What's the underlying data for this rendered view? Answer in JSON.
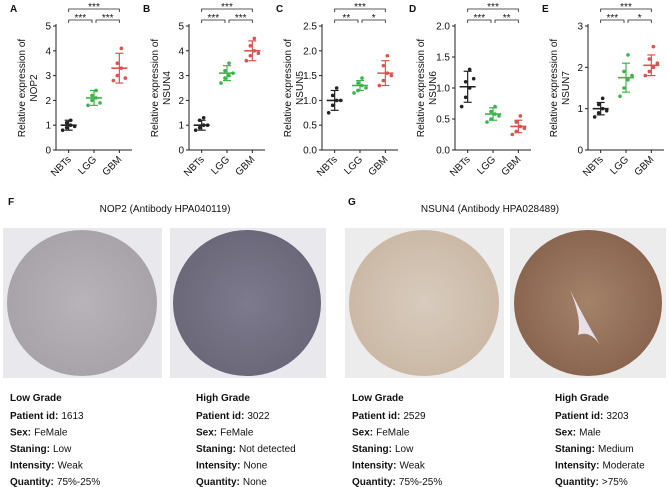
{
  "chart_data": [
    {
      "type": "strip",
      "panel": "A",
      "ylabel": [
        "Relative expression of",
        "NOP2"
      ],
      "categories": [
        "NBTs",
        "LGG",
        "GBM"
      ],
      "colors": [
        "#222222",
        "#3cb44b",
        "#d9534f"
      ],
      "points": [
        [
          0.8,
          0.9,
          1.0,
          1.1,
          1.2,
          0.95
        ],
        [
          1.8,
          2.0,
          2.1,
          2.2,
          2.4,
          1.9
        ],
        [
          2.8,
          3.0,
          3.3,
          3.5,
          4.1,
          2.9
        ]
      ],
      "means": [
        1.0,
        2.1,
        3.3
      ],
      "sds": [
        0.2,
        0.3,
        0.6
      ],
      "sig_labels": [
        "***",
        "***",
        "***"
      ],
      "ylim": [
        0,
        5
      ],
      "yticks": [
        0,
        1,
        2,
        3,
        4,
        5
      ]
    },
    {
      "type": "strip",
      "panel": "B",
      "ylabel": [
        "Relative expression of",
        "NSUN4"
      ],
      "categories": [
        "NBTs",
        "LGG",
        "GBM"
      ],
      "colors": [
        "#222222",
        "#3cb44b",
        "#d9534f"
      ],
      "points": [
        [
          0.8,
          0.9,
          1.0,
          1.2,
          1.3,
          1.0
        ],
        [
          2.7,
          2.9,
          3.0,
          3.2,
          3.5,
          3.1
        ],
        [
          3.6,
          3.8,
          4.0,
          4.2,
          4.5,
          3.9
        ]
      ],
      "means": [
        1.0,
        3.1,
        4.0
      ],
      "sds": [
        0.2,
        0.3,
        0.4
      ],
      "sig_labels": [
        "***",
        "***",
        "***"
      ],
      "ylim": [
        0,
        5
      ],
      "yticks": [
        0,
        1,
        2,
        3,
        4,
        5
      ]
    },
    {
      "type": "strip",
      "panel": "C",
      "ylabel": [
        "Relative expression of",
        "NSUN5"
      ],
      "categories": [
        "NBTs",
        "LGG",
        "GBM"
      ],
      "colors": [
        "#222222",
        "#3cb44b",
        "#d9534f"
      ],
      "points": [
        [
          0.75,
          0.9,
          1.0,
          1.1,
          1.25,
          1.0
        ],
        [
          1.15,
          1.2,
          1.3,
          1.35,
          1.45,
          1.25
        ],
        [
          1.3,
          1.4,
          1.55,
          1.7,
          1.9,
          1.5
        ]
      ],
      "means": [
        1.0,
        1.3,
        1.55
      ],
      "sds": [
        0.2,
        0.1,
        0.25
      ],
      "sig_labels": [
        "**",
        "*",
        "***"
      ],
      "ylim": [
        0,
        2.5
      ],
      "yticks": [
        {
          "value": 0,
          "label": "0.0"
        },
        {
          "value": 0.5,
          "label": "0.5"
        },
        {
          "value": 1,
          "label": "1.0"
        },
        {
          "value": 1.5,
          "label": "1.5"
        },
        {
          "value": 2,
          "label": "2.0"
        },
        {
          "value": 2.5,
          "label": "2.5"
        }
      ]
    },
    {
      "type": "strip",
      "panel": "D",
      "ylabel": [
        "Relative expression of",
        "NSUN6"
      ],
      "categories": [
        "NBTs",
        "LGG",
        "GBM"
      ],
      "colors": [
        "#222222",
        "#3cb44b",
        "#d9534f"
      ],
      "points": [
        [
          0.7,
          0.85,
          1.0,
          1.1,
          1.3,
          1.15
        ],
        [
          0.45,
          0.5,
          0.58,
          0.62,
          0.7,
          0.55
        ],
        [
          0.25,
          0.3,
          0.38,
          0.45,
          0.55,
          0.35
        ]
      ],
      "means": [
        1.02,
        0.58,
        0.38
      ],
      "sds": [
        0.25,
        0.1,
        0.1
      ],
      "sig_labels": [
        "***",
        "**",
        "***"
      ],
      "ylim": [
        0,
        2
      ],
      "yticks": [
        {
          "value": 0,
          "label": "0.0"
        },
        {
          "value": 0.5,
          "label": "0.5"
        },
        {
          "value": 1,
          "label": "1.0"
        },
        {
          "value": 1.5,
          "label": "1.5"
        },
        {
          "value": 2,
          "label": "2.0"
        }
      ]
    },
    {
      "type": "strip",
      "panel": "E",
      "ylabel": [
        "Relative expression of",
        "NSUN7"
      ],
      "categories": [
        "NBTs",
        "LGG",
        "GBM"
      ],
      "colors": [
        "#222222",
        "#3cb44b",
        "#d9534f"
      ],
      "points": [
        [
          0.8,
          0.9,
          1.0,
          1.1,
          1.25,
          0.95
        ],
        [
          1.3,
          1.5,
          1.7,
          1.9,
          2.3,
          1.8
        ],
        [
          1.8,
          1.9,
          2.0,
          2.2,
          2.5,
          2.1
        ]
      ],
      "means": [
        1.0,
        1.75,
        2.05
      ],
      "sds": [
        0.15,
        0.35,
        0.25
      ],
      "sig_labels": [
        "***",
        "*",
        "***"
      ],
      "ylim": [
        0,
        3
      ],
      "yticks": [
        0,
        1,
        2,
        3
      ]
    }
  ],
  "figure_panels": [
    {
      "label": "F",
      "title": "NOP2 (Antibody HPA040119)",
      "samples": [
        {
          "grade": "Low Grade",
          "fields": [
            {
              "label": "Patient id:",
              "value": "1613"
            },
            {
              "label": "Sex:",
              "value": "FeMale"
            },
            {
              "label": "Staning:",
              "value": "Low"
            },
            {
              "label": "Intensity:",
              "value": "Weak"
            },
            {
              "label": "Quantity:",
              "value": "75%-25%"
            }
          ]
        },
        {
          "grade": "High Grade",
          "fields": [
            {
              "label": "Patient id:",
              "value": "3022"
            },
            {
              "label": "Sex:",
              "value": "FeMale"
            },
            {
              "label": "Staning:",
              "value": "Not detected"
            },
            {
              "label": "Intensity:",
              "value": "None"
            },
            {
              "label": "Quantity:",
              "value": "None"
            }
          ]
        }
      ]
    },
    {
      "label": "G",
      "title": "NSUN4 (Antibody HPA028489)",
      "samples": [
        {
          "grade": "Low Grade",
          "fields": [
            {
              "label": "Patient id:",
              "value": "2529"
            },
            {
              "label": "Sex:",
              "value": "FeMale"
            },
            {
              "label": "Staning:",
              "value": "Low"
            },
            {
              "label": "Intensity:",
              "value": "Weak"
            },
            {
              "label": "Quantity:",
              "value": "75%-25%"
            }
          ]
        },
        {
          "grade": "High Grade",
          "fields": [
            {
              "label": "Patient id:",
              "value": "3203"
            },
            {
              "label": "Sex:",
              "value": "Male"
            },
            {
              "label": "Staning:",
              "value": "Medium"
            },
            {
              "label": "Intensity:",
              "value": "Moderate"
            },
            {
              "label": "Quantity:",
              "value": ">75%"
            }
          ]
        }
      ]
    }
  ]
}
